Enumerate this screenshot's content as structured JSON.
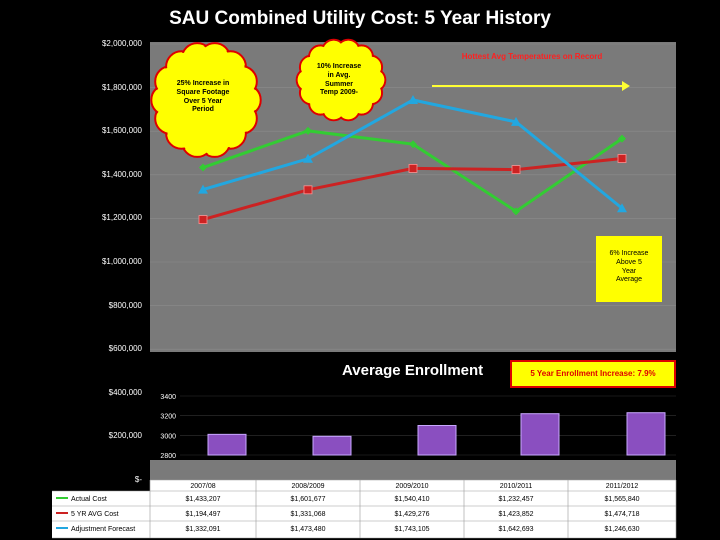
{
  "chart_data": {
    "type": "line",
    "title": "SAU Combined Utility Cost:  5 Year History",
    "categories": [
      "2007/08",
      "2008/2009",
      "2009/2010",
      "2010/2011",
      "2011/2012"
    ],
    "ylim": [
      0,
      2000000
    ],
    "y_ticks": [
      "$2,000,000",
      "$1,800,000",
      "$1,600,000",
      "$1,400,000",
      "$1,200,000",
      "$1,000,000",
      "$800,000",
      "$600,000",
      "$400,000",
      "$200,000",
      "$-"
    ],
    "series": [
      {
        "name": "Actual Cost",
        "color": "#33cc33",
        "marker": "diamond",
        "values": [
          1433207,
          1601677,
          1540410,
          1232457,
          1565840
        ],
        "labels": [
          "$1,433,207",
          "$1,601,677",
          "$1,540,410",
          "$1,232,457",
          "$1,565,840"
        ]
      },
      {
        "name": "5 YR AVG Cost",
        "color": "#cc2222",
        "marker": "square",
        "values": [
          1194497,
          1331068,
          1429276,
          1423852,
          1474718
        ],
        "labels": [
          "$1,194,497",
          "$1,331,068",
          "$1,429,276",
          "$1,423,852",
          "$1,474,718"
        ]
      },
      {
        "name": "Adjustment Forecast",
        "color": "#22a7e0",
        "marker": "triangle",
        "values": [
          1332091,
          1473480,
          1743105,
          1642693,
          1246630
        ],
        "labels": [
          "$1,332,091",
          "$1,473,480",
          "$1,743,105",
          "$1,642,693",
          "$1,246,630"
        ]
      }
    ],
    "annotations": {
      "hot_temps": "Hottest Avg Temperatures on Record",
      "bubble1": [
        "25% Increase in",
        "Square Footage",
        "Over 5 Year",
        "Period"
      ],
      "bubble2": [
        "10% Increase",
        "in  Avg.",
        "Summer",
        "Temp 2009-"
      ],
      "note_6pct": [
        "6% Increase",
        "Above 5",
        "Year",
        "Average"
      ]
    },
    "inset": {
      "type": "bar",
      "title": "Average Enrollment",
      "note": "5 Year Enrollment  Increase:  7.9%",
      "ylim": [
        2800,
        3400
      ],
      "y_ticks": [
        "3400",
        "3200",
        "3000",
        "2800"
      ],
      "values": [
        3010,
        2990,
        3100,
        3220,
        3230
      ],
      "bar_color": "#8a4fc0"
    }
  }
}
